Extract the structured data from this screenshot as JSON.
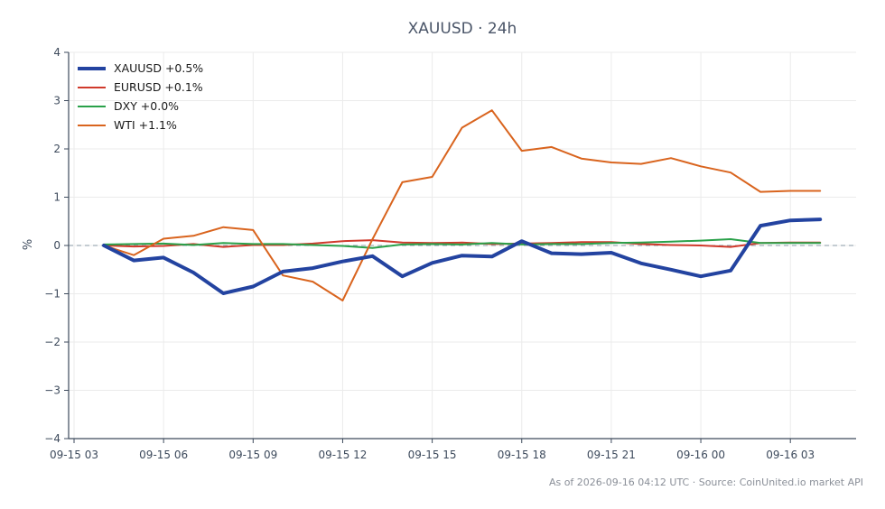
{
  "chart_data": {
    "type": "line",
    "title": "XAUUSD · 24h",
    "ylabel": "%",
    "xlabel": "",
    "ylim": [
      -4,
      4
    ],
    "yticks": [
      "−4",
      "−3",
      "−2",
      "−1",
      "0",
      "1",
      "2",
      "3",
      "4"
    ],
    "xticks": [
      "09-15 03",
      "09-15 06",
      "09-15 09",
      "09-15 12",
      "09-15 15",
      "09-15 18",
      "09-15 21",
      "09-16 00",
      "09-16 03"
    ],
    "grid": true,
    "zero_line": true,
    "legend_position": "top-left",
    "x_hours": [
      4,
      5,
      6,
      7,
      8,
      9,
      10,
      11,
      12,
      13,
      14,
      15,
      16,
      17,
      18,
      19,
      20,
      21,
      22,
      23,
      24,
      25,
      26,
      27,
      28
    ],
    "series": [
      {
        "name": "XAUUSD +0.5%",
        "color": "#2343a0",
        "width": 4,
        "values": [
          0.0,
          -0.31,
          -0.25,
          -0.56,
          -0.99,
          -0.85,
          -0.54,
          -0.47,
          -0.33,
          -0.22,
          -0.64,
          -0.36,
          -0.21,
          -0.23,
          0.09,
          -0.16,
          -0.18,
          -0.15,
          -0.37,
          -0.5,
          -0.64,
          -0.52,
          0.41,
          0.52,
          0.54
        ]
      },
      {
        "name": "EURUSD +0.1%",
        "color": "#d03a2c",
        "width": 2,
        "values": [
          0.0,
          -0.02,
          -0.01,
          0.03,
          -0.03,
          0.01,
          0.01,
          0.04,
          0.09,
          0.11,
          0.06,
          0.05,
          0.06,
          0.03,
          0.04,
          0.05,
          0.07,
          0.07,
          0.03,
          0.01,
          0.0,
          -0.03,
          0.05,
          0.06,
          0.06
        ]
      },
      {
        "name": "DXY +0.0%",
        "color": "#2aa14a",
        "width": 2,
        "values": [
          0.02,
          0.03,
          0.04,
          0.01,
          0.05,
          0.03,
          0.03,
          0.01,
          -0.01,
          -0.05,
          0.02,
          0.03,
          0.02,
          0.05,
          0.02,
          0.03,
          0.03,
          0.05,
          0.06,
          0.08,
          0.1,
          0.13,
          0.05,
          0.05,
          0.05
        ]
      },
      {
        "name": "WTI +1.1%",
        "color": "#d9641e",
        "width": 2,
        "values": [
          0.0,
          -0.2,
          0.14,
          0.2,
          0.38,
          0.32,
          -0.62,
          -0.75,
          -1.14,
          0.13,
          1.31,
          1.42,
          2.44,
          2.8,
          1.96,
          2.04,
          1.8,
          1.72,
          1.69,
          1.81,
          1.64,
          1.51,
          1.11,
          1.13,
          1.13
        ]
      }
    ],
    "footer": "As of 2026-09-16 04:12 UTC · Source: CoinUnited.io market API"
  }
}
